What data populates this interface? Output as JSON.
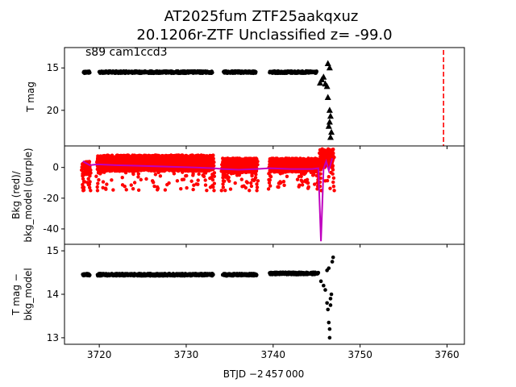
{
  "title_line1": "AT2025fum  ZTF25aakqxuz",
  "title_line2": "20.1206r-ZTF Unclassified z= -99.0",
  "xlabel": "BTJD −2 457 000",
  "colors": {
    "red": "#ff0000",
    "purple": "#bf00bf",
    "black": "#000000",
    "marker_dashed": "#ff0000"
  },
  "chart_data": [
    {
      "type": "scatter",
      "panel": "top",
      "ylabel": "T mag",
      "annotation": "s89 cam1ccd3",
      "x_range": [
        3716,
        3762
      ],
      "ylim": [
        12.6,
        24.2
      ],
      "y_inverted": true,
      "y_ticks": [
        15,
        20
      ],
      "x_ticks": [
        3720,
        3730,
        3740,
        3750,
        3760
      ],
      "vertical_line": {
        "x": 3759.6,
        "style": "dashed",
        "color": "#ff0000"
      },
      "series": [
        {
          "marker": "point",
          "segments": [
            {
              "x": [
                3718.2,
                3718.9
              ],
              "y": 15.5
            },
            {
              "x": [
                3720.0,
                3733.0
              ],
              "y": 15.5
            },
            {
              "x": [
                3734.3,
                3738.0
              ],
              "y": 15.5
            },
            {
              "x": [
                3739.6,
                3745.0
              ],
              "y": 15.5
            }
          ]
        },
        {
          "marker": "triangle",
          "x": [
            3745.4,
            3745.6,
            3745.8,
            3746.0,
            3746.2,
            3746.3,
            3746.5,
            3746.6,
            3746.5,
            3746.4,
            3746.7,
            3746.6,
            3746.3,
            3746.5
          ],
          "y": [
            16.8,
            16.4,
            16.1,
            16.9,
            17.2,
            18.5,
            20.0,
            20.7,
            21.4,
            21.9,
            22.6,
            23.2,
            14.5,
            15.0
          ]
        }
      ]
    },
    {
      "type": "scatter",
      "panel": "middle",
      "ylabel": "Bkg (red)/\nbkg_model (purple)",
      "x_range": [
        3716,
        3762
      ],
      "ylim": [
        -50,
        14
      ],
      "y_ticks": [
        0,
        -20,
        -40
      ],
      "series": [
        {
          "name": "Bkg",
          "color": "#ff0000",
          "segments": [
            {
              "x": [
                3718.1,
                3718.9
              ],
              "y_low": -15,
              "y_high": 4
            },
            {
              "x": [
                3719.8,
                3733.1
              ],
              "y_low": -15,
              "y_high": 8
            },
            {
              "x": [
                3734.2,
                3738.1
              ],
              "y_low": -15,
              "y_high": 6
            },
            {
              "x": [
                3739.6,
                3745.2
              ],
              "y_low": -14,
              "y_high": 6
            },
            {
              "x": [
                3745.4,
                3746.9
              ],
              "y_low": -15,
              "y_high": 12
            }
          ]
        },
        {
          "name": "bkg_model",
          "color": "#bf00bf",
          "x": [
            3718.1,
            3718.9,
            3719.8,
            3722,
            3725,
            3728,
            3731,
            3733.1,
            3734.2,
            3736,
            3738.1,
            3739.6,
            3742,
            3744.5,
            3745.2,
            3745.5,
            3745.8,
            3746.1,
            3746.4,
            3746.8
          ],
          "y": [
            4,
            1.5,
            2,
            1.5,
            1,
            0.5,
            0,
            -0.5,
            -1,
            -1.5,
            -1,
            -0.5,
            -1,
            -1,
            -0.5,
            -48,
            -1,
            4,
            -2,
            6
          ]
        }
      ]
    },
    {
      "type": "scatter",
      "panel": "bottom",
      "ylabel": "T mag −\nbkg_model",
      "x_range": [
        3716,
        3762
      ],
      "ylim": [
        15.15,
        12.85
      ],
      "y_inverted": true,
      "y_ticks": [
        13,
        14,
        15
      ],
      "x_ticks": [
        3720,
        3730,
        3740,
        3750,
        3760
      ],
      "series": [
        {
          "marker": "point",
          "segments": [
            {
              "x": [
                3718.1,
                3718.9
              ],
              "y": 14.45
            },
            {
              "x": [
                3719.8,
                3733.1
              ],
              "y": 14.45
            },
            {
              "x": [
                3734.2,
                3738.1
              ],
              "y": 14.45
            },
            {
              "x": [
                3739.6,
                3745.2
              ],
              "y": 14.48
            }
          ],
          "extra_x": [
            3745.5,
            3745.8,
            3746.0,
            3746.2,
            3746.3,
            3746.4,
            3746.5,
            3746.5,
            3746.6,
            3746.6,
            3746.7,
            3746.4,
            3746.8,
            3746.2,
            3746.9
          ],
          "extra_y": [
            14.3,
            14.2,
            14.1,
            13.8,
            13.65,
            13.35,
            13.2,
            13.0,
            13.75,
            13.9,
            14.0,
            14.6,
            14.75,
            14.55,
            14.85
          ]
        }
      ]
    }
  ]
}
